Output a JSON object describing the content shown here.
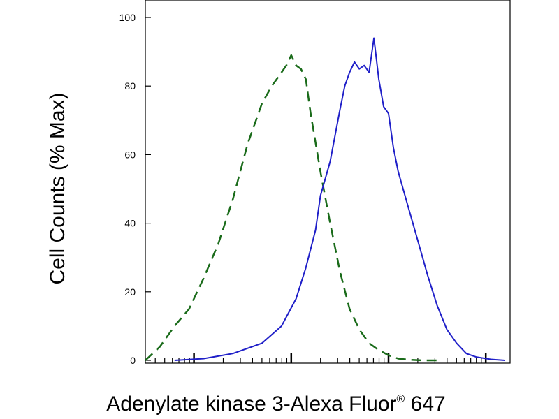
{
  "chart_data": {
    "type": "line",
    "title": "",
    "xlabel": "Adenylate kinase 3-Alexa Fluor",
    "xlabel_superscript": "®",
    "xlabel_suffix": " 647",
    "ylabel": "Cell Counts (% Max)",
    "xscale": "log",
    "xlim_decades": [
      -1.5,
      2.25
    ],
    "ylim": [
      0,
      105
    ],
    "yticks": [
      0,
      20,
      40,
      60,
      80,
      100
    ],
    "ytick_labels": [
      "0",
      "20",
      "40",
      "60",
      "80",
      "100"
    ],
    "xtick_labels": [],
    "grid": false,
    "legend": "none",
    "series": [
      {
        "style": "dashed",
        "color": "#1a6b1a",
        "x": [
          -1.5,
          -1.35,
          -1.2,
          -1.05,
          -0.9,
          -0.75,
          -0.6,
          -0.45,
          -0.3,
          -0.2,
          -0.1,
          -0.05,
          0.0,
          0.05,
          0.1,
          0.15,
          0.2,
          0.3,
          0.4,
          0.5,
          0.6,
          0.7,
          0.8,
          0.9,
          1.0,
          1.1,
          1.2,
          1.35,
          1.5
        ],
        "y": [
          0,
          4,
          10,
          15,
          24,
          34,
          47,
          63,
          75,
          80,
          84,
          86,
          89,
          86,
          85,
          82,
          72,
          55,
          40,
          26,
          15,
          9,
          5,
          3,
          1.5,
          0.5,
          0.2,
          0,
          0
        ]
      },
      {
        "style": "solid",
        "color": "#1f1fc8",
        "x": [
          -1.2,
          -0.9,
          -0.6,
          -0.3,
          -0.1,
          0.05,
          0.15,
          0.25,
          0.3,
          0.4,
          0.5,
          0.55,
          0.6,
          0.65,
          0.7,
          0.75,
          0.8,
          0.85,
          0.9,
          0.95,
          1.0,
          1.05,
          1.1,
          1.2,
          1.3,
          1.4,
          1.5,
          1.6,
          1.7,
          1.8,
          1.9,
          2.05,
          2.2
        ],
        "y": [
          0,
          0.5,
          2,
          5,
          10,
          18,
          27,
          38,
          48,
          58,
          73,
          80,
          84,
          87,
          85,
          86,
          84,
          94,
          82,
          74,
          72,
          62,
          55,
          45,
          35,
          25,
          16,
          9,
          5,
          2,
          1,
          0.3,
          0
        ]
      }
    ]
  }
}
